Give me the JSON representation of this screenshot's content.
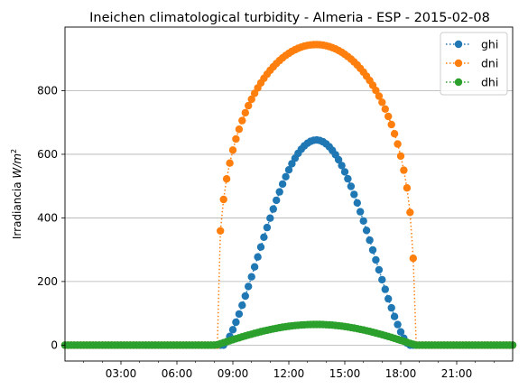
{
  "chart_data": {
    "type": "line",
    "title": "Ineichen climatological turbidity - Almeria - ESP - 2015-02-08",
    "xlabel": "",
    "ylabel": "Irradiancia W/m²",
    "ylabel_parts": {
      "prefix": "Irradiancia ",
      "unit": "W/m",
      "exp": "2"
    },
    "x_unit": "hour_of_day",
    "xlim": [
      0,
      24
    ],
    "ylim": [
      -50,
      1000
    ],
    "x_ticks": [
      {
        "value": 3,
        "label": "03:00"
      },
      {
        "value": 6,
        "label": "06:00"
      },
      {
        "value": 9,
        "label": "09:00"
      },
      {
        "value": 12,
        "label": "12:00"
      },
      {
        "value": 15,
        "label": "15:00"
      },
      {
        "value": 18,
        "label": "18:00"
      },
      {
        "value": 21,
        "label": "21:00"
      }
    ],
    "y_ticks": [
      {
        "value": 0,
        "label": "0"
      },
      {
        "value": 200,
        "label": "200"
      },
      {
        "value": 400,
        "label": "400"
      },
      {
        "value": 600,
        "label": "600"
      },
      {
        "value": 800,
        "label": "800"
      }
    ],
    "grid": "y-major",
    "legend_position": "top-right",
    "line_style": "dotted-with-circle-markers",
    "sample_interval_minutes": 10,
    "series": [
      {
        "name": "ghi",
        "color": "#1f77b4",
        "model": "sinusoidal-day",
        "sunrise": 8.5,
        "sunset": 18.45,
        "peak": 645,
        "exponent": 1.4,
        "night_value": 0
      },
      {
        "name": "dni",
        "color": "#ff7f0e",
        "model": "sinusoidal-day",
        "sunrise": 8.2,
        "sunset": 18.72,
        "peak": 945,
        "exponent": 0.3,
        "night_value": 0
      },
      {
        "name": "dhi",
        "color": "#2ca02c",
        "model": "sinusoidal-day",
        "sunrise": 8.1,
        "sunset": 18.8,
        "peak": 65,
        "exponent": 1.0,
        "night_value": 0
      }
    ]
  }
}
